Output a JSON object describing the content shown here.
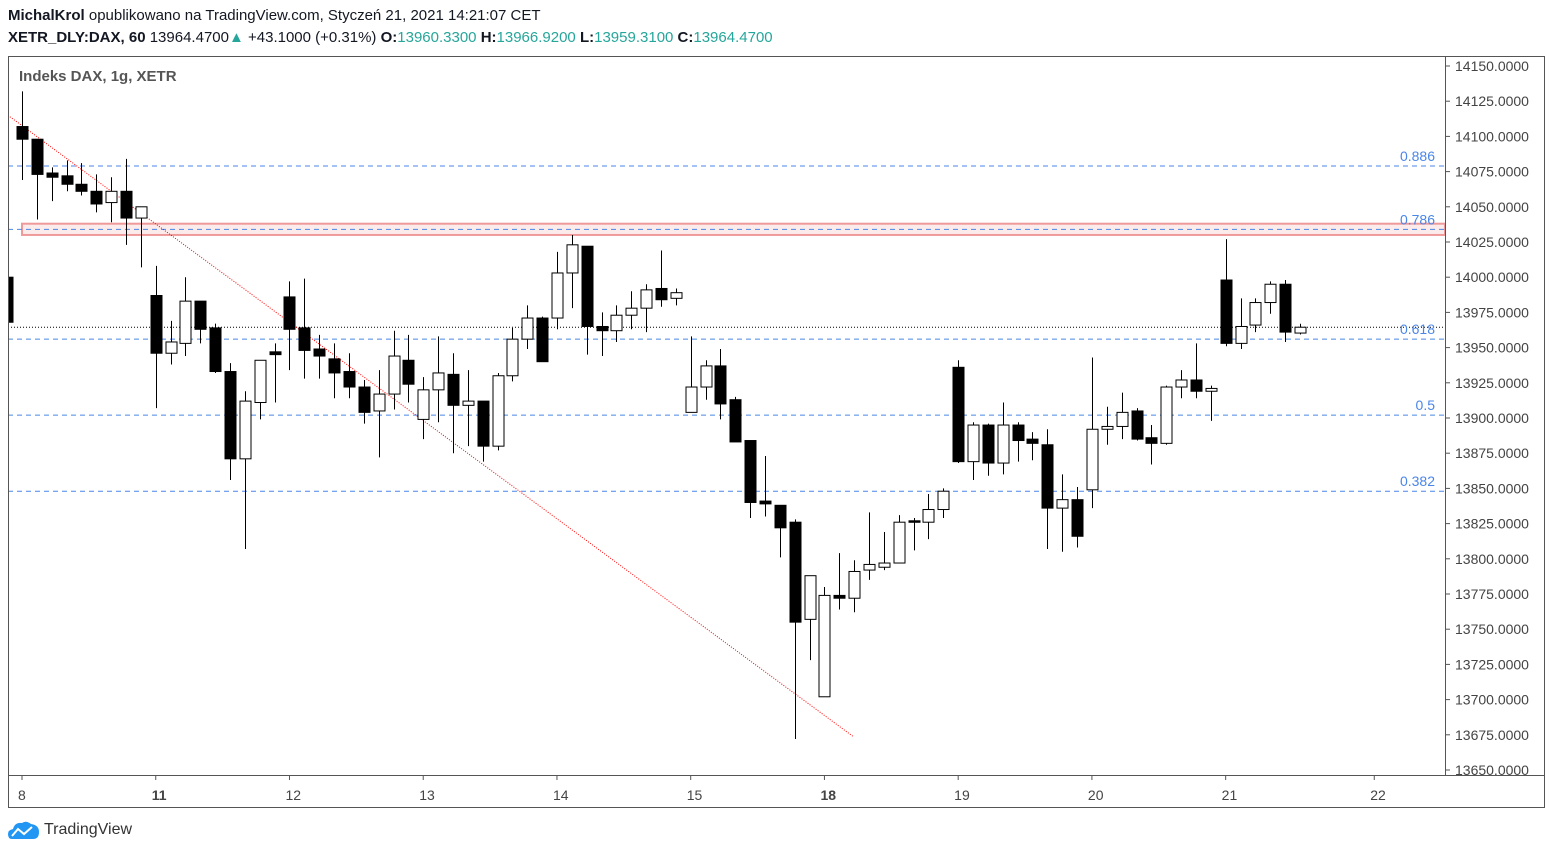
{
  "header": {
    "author": "MichalKrol",
    "published_text": "opublikowano na TradingView.com, Styczeń 21, 2021 14:21:07 CET",
    "symbol": "XETR_DLY:DAX, 60",
    "last": "13964.4700",
    "change": "+43.1000 (+0.31%)",
    "o_label": "O:",
    "o": "13960.3300",
    "h_label": "H:",
    "h": "13966.9200",
    "l_label": "L:",
    "l": "13959.3100",
    "c_label": "C:",
    "c": "13964.4700"
  },
  "legend": "Indeks DAX, 1g, XETR",
  "brand": "TradingView",
  "colors": {
    "up_fill": "#ffffff",
    "down_fill": "#000000",
    "fib": "#4a86e8",
    "zone": "#ef9a9a",
    "trend": "#ff0000",
    "accent": "#26a69a"
  },
  "chart_data": {
    "type": "candlestick",
    "title": "Indeks DAX, 1g, XETR",
    "ylim": [
      13650,
      14150
    ],
    "yticks": [
      "14150.0000",
      "14125.0000",
      "14100.0000",
      "14075.0000",
      "14050.0000",
      "14025.0000",
      "14000.0000",
      "13975.0000",
      "13950.0000",
      "13925.0000",
      "13900.0000",
      "13875.0000",
      "13850.0000",
      "13825.0000",
      "13800.0000",
      "13775.0000",
      "13750.0000",
      "13725.0000",
      "13700.0000",
      "13675.0000",
      "13650.0000"
    ],
    "xticks": [
      {
        "label": "8",
        "index": 0,
        "bold": false
      },
      {
        "label": "11",
        "index": 9,
        "bold": true
      },
      {
        "label": "12",
        "index": 18,
        "bold": false
      },
      {
        "label": "13",
        "index": 27,
        "bold": false
      },
      {
        "label": "14",
        "index": 36,
        "bold": false
      },
      {
        "label": "15",
        "index": 45,
        "bold": false
      },
      {
        "label": "18",
        "index": 54,
        "bold": true
      },
      {
        "label": "19",
        "index": 63,
        "bold": false
      },
      {
        "label": "20",
        "index": 72,
        "bold": false
      },
      {
        "label": "21",
        "index": 81,
        "bold": false
      },
      {
        "label": "22",
        "index": 91,
        "bold": false
      }
    ],
    "first_index": -1,
    "ohlc": [
      [
        14000,
        14000,
        13968,
        13968
      ],
      [
        14107,
        14132,
        14069,
        14098
      ],
      [
        14098,
        14098,
        14041,
        14073
      ],
      [
        14074,
        14078,
        14054,
        14071
      ],
      [
        14072,
        14083,
        14061,
        14066
      ],
      [
        14066,
        14081,
        14058,
        14061
      ],
      [
        14061,
        14073,
        14046,
        14052
      ],
      [
        14053,
        14071,
        14039,
        14061
      ],
      [
        14061,
        14084,
        14023,
        14042
      ],
      [
        14042,
        14050,
        14007,
        14050
      ],
      [
        13987,
        14008,
        13907,
        13946
      ],
      [
        13946,
        13969,
        13938,
        13954
      ],
      [
        13953,
        14000,
        13944,
        13983
      ],
      [
        13983,
        13983,
        13953,
        13963
      ],
      [
        13964,
        13967,
        13932,
        13933
      ],
      [
        13933,
        13939,
        13856,
        13871
      ],
      [
        13871,
        13919,
        13807,
        13912
      ],
      [
        13911,
        13941,
        13899,
        13941
      ],
      [
        13947,
        13953,
        13911,
        13945
      ],
      [
        13986,
        13997,
        13934,
        13963
      ],
      [
        13964,
        13999,
        13928,
        13948
      ],
      [
        13949,
        13959,
        13928,
        13944
      ],
      [
        13942,
        13953,
        13914,
        13932
      ],
      [
        13933,
        13946,
        13914,
        13922
      ],
      [
        13922,
        13927,
        13896,
        13904
      ],
      [
        13905,
        13934,
        13872,
        13917
      ],
      [
        13917,
        13962,
        13906,
        13944
      ],
      [
        13941,
        13959,
        13911,
        13924
      ],
      [
        13899,
        13929,
        13885,
        13920
      ],
      [
        13920,
        13958,
        13897,
        13932
      ],
      [
        13931,
        13946,
        13875,
        13909
      ],
      [
        13909,
        13934,
        13880,
        13912
      ],
      [
        13912,
        13912,
        13869,
        13880
      ],
      [
        13880,
        13932,
        13877,
        13930
      ],
      [
        13930,
        13964,
        13926,
        13956
      ],
      [
        13956,
        13980,
        13949,
        13971
      ],
      [
        13971,
        13972,
        13940,
        13940
      ],
      [
        13971,
        14018,
        13963,
        14003
      ],
      [
        14003,
        14030,
        13978,
        14023
      ],
      [
        14022,
        14022,
        13945,
        13965
      ],
      [
        13965,
        13975,
        13944,
        13962
      ],
      [
        13962,
        13980,
        13954,
        13973
      ],
      [
        13973,
        13990,
        13963,
        13978
      ],
      [
        13978,
        13995,
        13961,
        13991
      ],
      [
        13992,
        14019,
        13979,
        13984
      ],
      [
        13985,
        13992,
        13980,
        13989
      ],
      [
        13904,
        13958,
        13904,
        13922
      ],
      [
        13922,
        13941,
        13913,
        13937
      ],
      [
        13937,
        13949,
        13899,
        13910
      ],
      [
        13913,
        13915,
        13883,
        13883
      ],
      [
        13884,
        13884,
        13829,
        13840
      ],
      [
        13841,
        13873,
        13830,
        13839
      ],
      [
        13838,
        13838,
        13801,
        13822
      ],
      [
        13826,
        13828,
        13672,
        13755
      ],
      [
        13757,
        13788,
        13728,
        13788
      ],
      [
        13702,
        13780,
        13702,
        13774
      ],
      [
        13774,
        13804,
        13764,
        13772
      ],
      [
        13772,
        13799,
        13762,
        13791
      ],
      [
        13792,
        13833,
        13785,
        13796
      ],
      [
        13794,
        13819,
        13792,
        13797
      ],
      [
        13797,
        13831,
        13797,
        13826
      ],
      [
        13827,
        13829,
        13806,
        13826
      ],
      [
        13826,
        13846,
        13814,
        13835
      ],
      [
        13835,
        13850,
        13829,
        13848
      ],
      [
        13936,
        13941,
        13868,
        13869
      ],
      [
        13869,
        13897,
        13856,
        13895
      ],
      [
        13895,
        13896,
        13859,
        13868
      ],
      [
        13868,
        13911,
        13860,
        13895
      ],
      [
        13895,
        13897,
        13869,
        13884
      ],
      [
        13885,
        13890,
        13870,
        13882
      ],
      [
        13881,
        13892,
        13807,
        13836
      ],
      [
        13836,
        13860,
        13805,
        13842
      ],
      [
        13842,
        13851,
        13808,
        13816
      ],
      [
        13849,
        13943,
        13836,
        13892
      ],
      [
        13892,
        13908,
        13881,
        13894
      ],
      [
        13894,
        13918,
        13885,
        13904
      ],
      [
        13905,
        13907,
        13884,
        13885
      ],
      [
        13886,
        13895,
        13867,
        13882
      ],
      [
        13882,
        13923,
        13881,
        13922
      ],
      [
        13922,
        13934,
        13914,
        13927
      ],
      [
        13927,
        13953,
        13914,
        13919
      ],
      [
        13919,
        13923,
        13898,
        13921
      ],
      [
        13998,
        14027,
        13951,
        13953
      ],
      [
        13953,
        13985,
        13949,
        13965
      ],
      [
        13966,
        13985,
        13961,
        13982
      ],
      [
        13982,
        13997,
        13974,
        13995
      ],
      [
        13995,
        13998,
        13954,
        13961
      ],
      [
        13960.33,
        13966.92,
        13959.31,
        13964.47
      ]
    ],
    "fib_levels": [
      {
        "label": "0.886",
        "price": 14079
      },
      {
        "label": "0.786",
        "price": 14034
      },
      {
        "label": "0.618",
        "price": 13956
      },
      {
        "label": "0.5",
        "price": 13902
      },
      {
        "label": "0.382",
        "price": 13848
      }
    ],
    "resistance_zone": {
      "from_price": 14030,
      "to_price": 14038,
      "start_index": 0
    },
    "trendline": {
      "start": {
        "index": -0.95,
        "price": 14115
      },
      "end": {
        "index": 55.9,
        "price": 13674
      }
    },
    "last_price": 13964.47
  }
}
